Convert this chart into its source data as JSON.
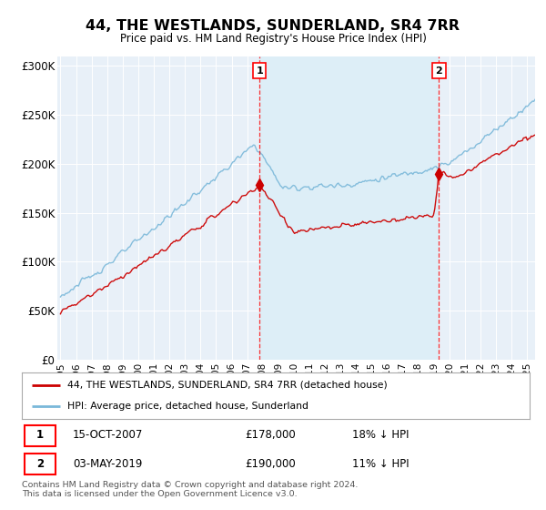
{
  "title": "44, THE WESTLANDS, SUNDERLAND, SR4 7RR",
  "subtitle": "Price paid vs. HM Land Registry's House Price Index (HPI)",
  "ylabel_ticks": [
    "£0",
    "£50K",
    "£100K",
    "£150K",
    "£200K",
    "£250K",
    "£300K"
  ],
  "ytick_values": [
    0,
    50000,
    100000,
    150000,
    200000,
    250000,
    300000
  ],
  "ylim": [
    0,
    310000
  ],
  "xlim_start": 1994.8,
  "xlim_end": 2025.5,
  "hpi_color": "#7ab8d9",
  "price_color": "#cc0000",
  "shade_color": "#ddeef7",
  "marker1_date": 2007.79,
  "marker1_price": 178000,
  "marker2_date": 2019.33,
  "marker2_price": 190000,
  "legend_line1": "44, THE WESTLANDS, SUNDERLAND, SR4 7RR (detached house)",
  "legend_line2": "HPI: Average price, detached house, Sunderland",
  "copyright": "Contains HM Land Registry data © Crown copyright and database right 2024.\nThis data is licensed under the Open Government Licence v3.0.",
  "background_color": "#ffffff",
  "plot_bg_color": "#e8f0f8"
}
